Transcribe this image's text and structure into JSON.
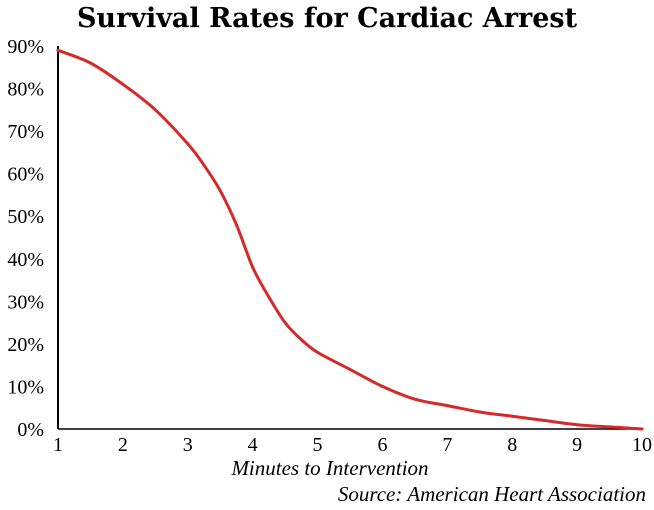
{
  "chart_data": {
    "type": "line",
    "title": "Survival Rates for Cardiac Arrest",
    "xlabel": "Minutes to Intervention",
    "ylabel": "",
    "source": "Source: American Heart Association",
    "x_ticks": [
      "1",
      "2",
      "3",
      "4",
      "5",
      "6",
      "7",
      "8",
      "9",
      "10"
    ],
    "y_ticks": [
      "0%",
      "10%",
      "20%",
      "30%",
      "40%",
      "50%",
      "60%",
      "70%",
      "80%",
      "90%"
    ],
    "xlim": [
      1,
      10
    ],
    "ylim": [
      0,
      90
    ],
    "grid": false,
    "legend": "none",
    "colors": {
      "line": "#d42a2a",
      "axis": "#000000"
    },
    "series": [
      {
        "x": [
          1,
          1.5,
          2,
          2.5,
          3,
          3.25,
          3.5,
          3.75,
          4,
          4.25,
          4.5,
          4.75,
          5,
          5.5,
          6,
          6.5,
          7,
          7.5,
          8,
          8.5,
          9,
          9.5,
          10
        ],
        "values": [
          89,
          86,
          81,
          75,
          67,
          62,
          56,
          48,
          38,
          31,
          25,
          21,
          18,
          14,
          10,
          7,
          5.5,
          4,
          3,
          2,
          1,
          0.5,
          0
        ]
      }
    ]
  }
}
